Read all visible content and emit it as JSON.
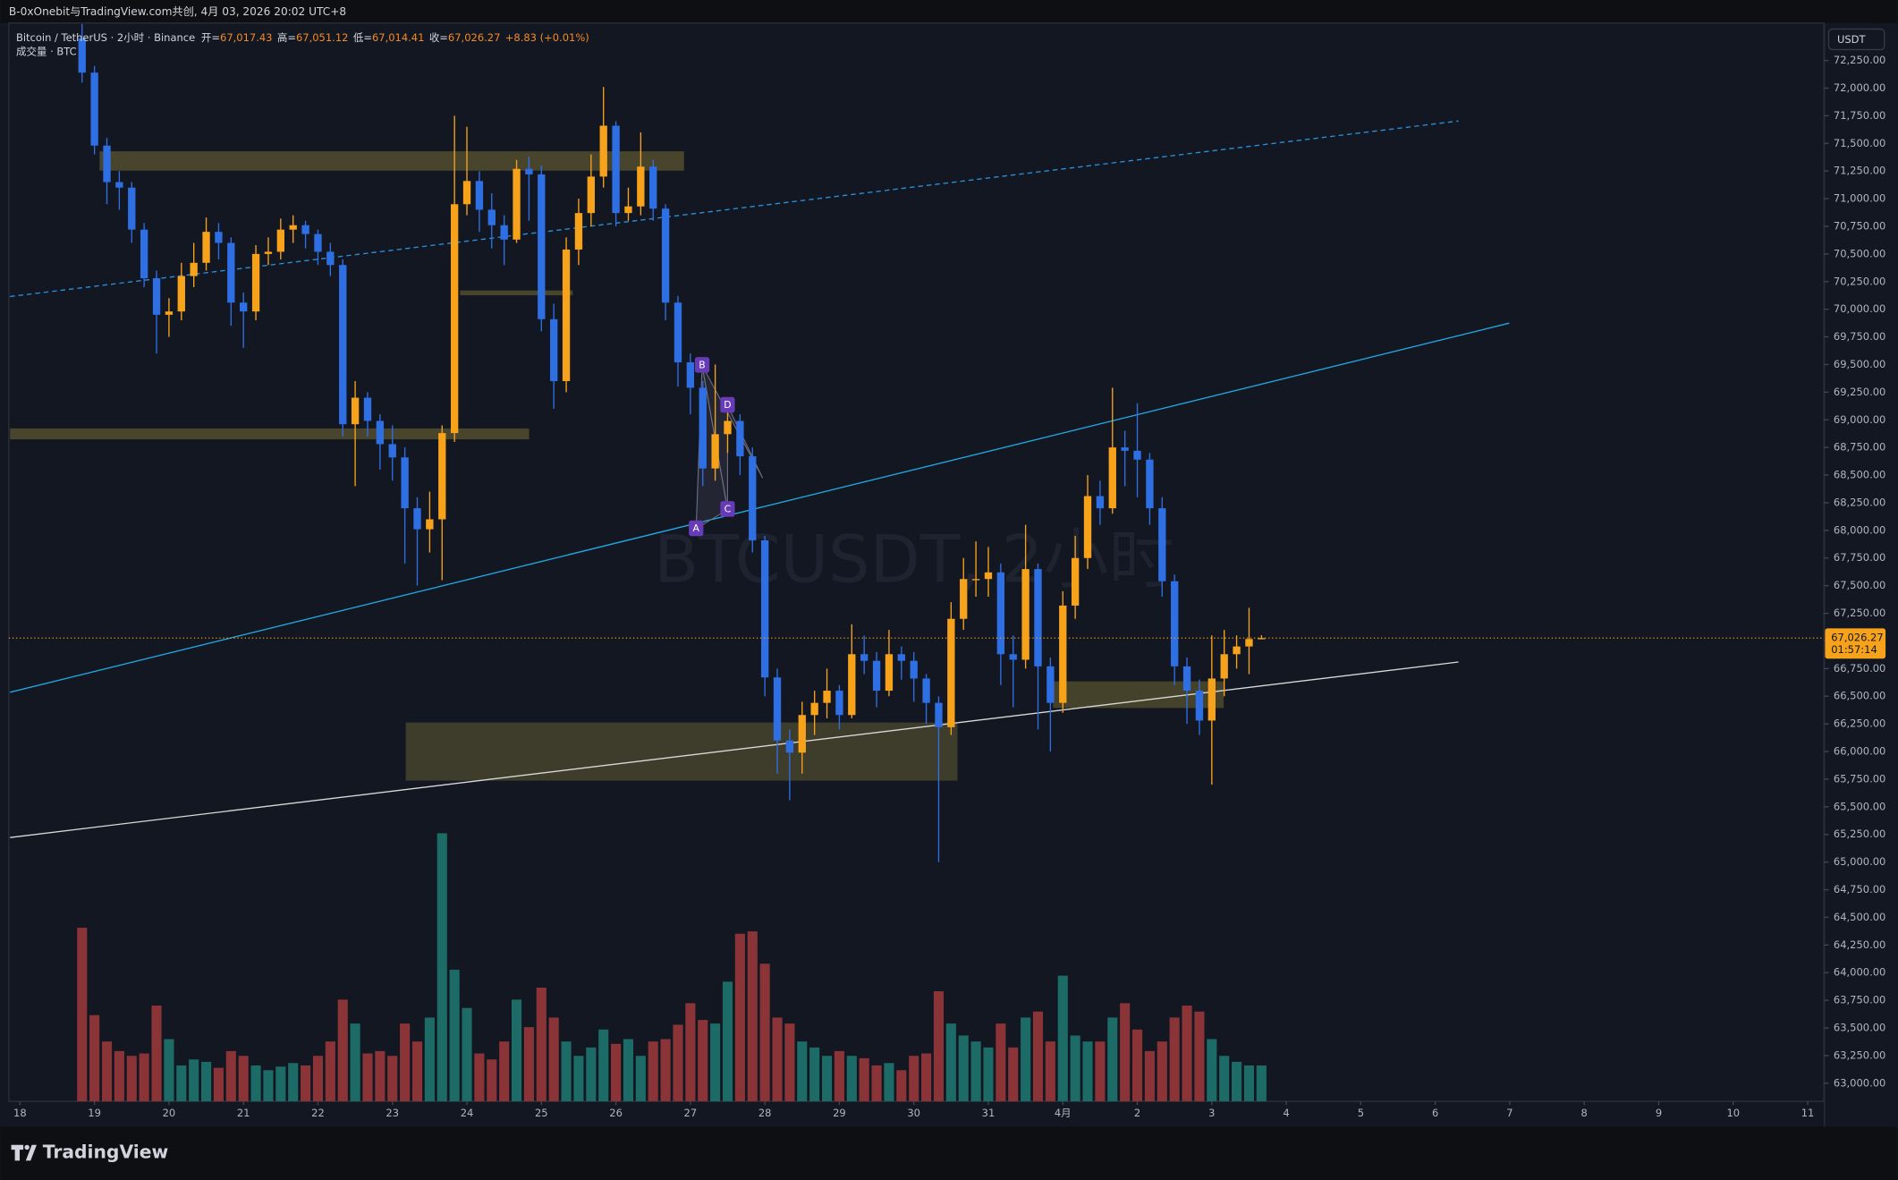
{
  "ui": {
    "top_title": "B-0xOnebit与TradingView.com共创, 4月 03, 2026 20:02 UTC+8",
    "symbol": "Bitcoin / TetherUS · 2小时 · Binance",
    "o_key": "开=",
    "o_val": "67,017.43",
    "h_key": "高=",
    "h_val": "67,051.12",
    "l_key": "低=",
    "l_val": "67,014.41",
    "c_key": "收=",
    "c_val": "67,026.27",
    "change": "+8.83 (+0.01%)",
    "volume_legend": "成交量 · BTC",
    "watermark": "BTCUSDT, 2小时",
    "currency": "USDT",
    "price_label": "67,026.27",
    "countdown": "01:57:14",
    "pattern_labels": [
      "B",
      "D",
      "A",
      "C"
    ],
    "brand": "TradingView"
  },
  "chart_data": {
    "type": "candlestick",
    "up_color": "#f7a21b",
    "down_color": "#2f6fe4",
    "volume_up_color": "#1d6b66",
    "volume_down_color": "#8a3438",
    "x": [
      0,
      1,
      2,
      3,
      4,
      5,
      6,
      7,
      8,
      9,
      10,
      11,
      12,
      13,
      14,
      15,
      16,
      17,
      18,
      19,
      20,
      21,
      22,
      23,
      24,
      25,
      26,
      27,
      28,
      29,
      30,
      31,
      32,
      33,
      34,
      35,
      36,
      37,
      38,
      39,
      40,
      41,
      42,
      43,
      44,
      45,
      46,
      47,
      48,
      49,
      50,
      51,
      52,
      53,
      54,
      55,
      56,
      57,
      58,
      59,
      60,
      61,
      62,
      63,
      64,
      65,
      66,
      67,
      68,
      69,
      70,
      71,
      72,
      73,
      74,
      75,
      76,
      77,
      78,
      79,
      80,
      81,
      82,
      83,
      84,
      85,
      86,
      87,
      88,
      89,
      90,
      91,
      92,
      93,
      94,
      95
    ],
    "open": [
      72450,
      72140,
      71480,
      71150,
      71100,
      70720,
      70280,
      69950,
      69980,
      70300,
      70420,
      70700,
      70600,
      70060,
      69980,
      70500,
      70520,
      70720,
      70760,
      70680,
      70520,
      70400,
      68960,
      69200,
      68990,
      68780,
      68660,
      68200,
      68010,
      68100,
      68880,
      70950,
      71160,
      70900,
      70760,
      70630,
      71270,
      71220,
      69910,
      69350,
      70540,
      70870,
      71200,
      71660,
      70870,
      70930,
      71290,
      70910,
      70060,
      69520,
      69290,
      68560,
      68870,
      68990,
      68670,
      67910,
      66670,
      66100,
      65990,
      66330,
      66440,
      66550,
      66330,
      66880,
      66820,
      66550,
      66880,
      66820,
      66660,
      66440,
      66220,
      67200,
      67560,
      67560,
      67620,
      66880,
      66830,
      67650,
      66770,
      66440,
      67320,
      67750,
      68310,
      68200,
      68750,
      68720,
      68640,
      68200,
      67540,
      66770,
      66550,
      66280,
      66660,
      66880,
      66950,
      67017.43
    ],
    "high": [
      72580,
      72200,
      71550,
      71250,
      71150,
      70780,
      70350,
      70100,
      70420,
      70600,
      70830,
      70780,
      70650,
      70150,
      70580,
      70650,
      70820,
      70850,
      70800,
      70720,
      70600,
      70450,
      69350,
      69250,
      69050,
      68950,
      68750,
      68300,
      68350,
      68950,
      71750,
      71650,
      71250,
      71050,
      70850,
      71350,
      71380,
      71300,
      70050,
      70650,
      71000,
      71400,
      72010,
      71700,
      71100,
      71600,
      71350,
      70950,
      70120,
      69600,
      69350,
      69500,
      69100,
      69050,
      68750,
      67950,
      66750,
      66200,
      66450,
      66550,
      66750,
      66600,
      67150,
      67050,
      66900,
      67100,
      66950,
      66900,
      66700,
      66500,
      67350,
      67750,
      67900,
      67850,
      67700,
      67050,
      68050,
      67700,
      66850,
      67450,
      67950,
      68500,
      68450,
      69290,
      68900,
      69150,
      68700,
      68300,
      67600,
      66850,
      66650,
      67050,
      67100,
      67050,
      67300,
      67051.12
    ],
    "low": [
      72050,
      71400,
      70950,
      70900,
      70600,
      70200,
      69600,
      69750,
      69900,
      70200,
      70350,
      70450,
      69850,
      69650,
      69900,
      70400,
      70450,
      70600,
      70550,
      70400,
      70300,
      68850,
      68400,
      68850,
      68550,
      68450,
      67700,
      67500,
      67800,
      67550,
      68800,
      70850,
      70700,
      70550,
      70400,
      70600,
      70800,
      69800,
      69100,
      69250,
      70400,
      70750,
      71100,
      70750,
      70800,
      70850,
      70800,
      69900,
      69300,
      69050,
      68400,
      68450,
      68700,
      68500,
      67800,
      66500,
      65800,
      65560,
      65800,
      66150,
      66300,
      66200,
      66300,
      66700,
      66400,
      66500,
      66650,
      66450,
      66250,
      65000,
      66150,
      67100,
      67400,
      67400,
      66600,
      66400,
      66750,
      66200,
      66000,
      66350,
      67200,
      67650,
      68050,
      68150,
      68400,
      68300,
      68050,
      67400,
      66600,
      66250,
      66150,
      65700,
      66500,
      66750,
      66700,
      67014.41
    ],
    "close": [
      72140,
      71480,
      71150,
      71100,
      70720,
      70280,
      69950,
      69980,
      70300,
      70420,
      70700,
      70600,
      70060,
      69980,
      70500,
      70520,
      70720,
      70760,
      70680,
      70520,
      70400,
      68960,
      69200,
      68990,
      68780,
      68660,
      68200,
      68010,
      68100,
      68880,
      70950,
      71160,
      70900,
      70760,
      70630,
      71270,
      71220,
      69910,
      69350,
      70540,
      70870,
      71200,
      71660,
      70870,
      70930,
      71290,
      70910,
      70060,
      69520,
      69290,
      68560,
      68870,
      68990,
      68670,
      67910,
      66670,
      66100,
      65990,
      66330,
      66440,
      66550,
      66330,
      66880,
      66820,
      66550,
      66880,
      66820,
      66660,
      66440,
      66220,
      67200,
      67560,
      67560,
      67620,
      66880,
      66830,
      67650,
      66770,
      66440,
      67320,
      67750,
      68310,
      68200,
      68750,
      68720,
      68640,
      68200,
      67540,
      66770,
      66550,
      66280,
      66660,
      66880,
      66950,
      67017.43,
      67026.27
    ],
    "volume": [
      1450,
      720,
      500,
      420,
      380,
      400,
      800,
      520,
      300,
      350,
      330,
      280,
      420,
      380,
      300,
      260,
      290,
      320,
      300,
      380,
      500,
      850,
      650,
      400,
      420,
      380,
      650,
      500,
      700,
      2240,
      1100,
      780,
      400,
      350,
      500,
      850,
      620,
      950,
      700,
      500,
      380,
      450,
      600,
      480,
      520,
      380,
      500,
      520,
      640,
      820,
      680,
      650,
      1000,
      1400,
      1420,
      1150,
      700,
      650,
      500,
      450,
      380,
      420,
      380,
      360,
      300,
      320,
      260,
      380,
      400,
      920,
      650,
      550,
      500,
      450,
      650,
      450,
      700,
      750,
      500,
      1050,
      550,
      500,
      500,
      700,
      820,
      600,
      420,
      500,
      700,
      800,
      750,
      520,
      380,
      330,
      300,
      300
    ],
    "volume_ylim": [
      0,
      9000
    ],
    "xlim": [
      -5.9,
      140.3
    ],
    "xticks": [
      {
        "value": -5,
        "label": "18"
      },
      {
        "value": 1,
        "label": "19"
      },
      {
        "value": 7,
        "label": "20"
      },
      {
        "value": 13,
        "label": "21"
      },
      {
        "value": 19,
        "label": "22"
      },
      {
        "value": 25,
        "label": "23"
      },
      {
        "value": 31,
        "label": "24"
      },
      {
        "value": 37,
        "label": "25"
      },
      {
        "value": 43,
        "label": "26"
      },
      {
        "value": 49,
        "label": "27"
      },
      {
        "value": 55,
        "label": "28"
      },
      {
        "value": 61,
        "label": "29"
      },
      {
        "value": 67,
        "label": "30"
      },
      {
        "value": 73,
        "label": "31"
      },
      {
        "value": 79,
        "label": "4月"
      },
      {
        "value": 85,
        "label": "2"
      },
      {
        "value": 91,
        "label": "3"
      },
      {
        "value": 97,
        "label": "4"
      },
      {
        "value": 103,
        "label": "5"
      },
      {
        "value": 109,
        "label": "6"
      },
      {
        "value": 115,
        "label": "7"
      },
      {
        "value": 121,
        "label": "8"
      },
      {
        "value": 127,
        "label": "9"
      },
      {
        "value": 133,
        "label": "10"
      },
      {
        "value": 139,
        "label": "11"
      }
    ],
    "ylim": [
      62836,
      72578
    ],
    "yticks": [
      {
        "value": 72250,
        "label": "72,250.00"
      },
      {
        "value": 72000,
        "label": "72,000.00"
      },
      {
        "value": 71750,
        "label": "71,750.00"
      },
      {
        "value": 71500,
        "label": "71,500.00"
      },
      {
        "value": 71250,
        "label": "71,250.00"
      },
      {
        "value": 71000,
        "label": "71,000.00"
      },
      {
        "value": 70750,
        "label": "70,750.00"
      },
      {
        "value": 70500,
        "label": "70,500.00"
      },
      {
        "value": 70250,
        "label": "70,250.00"
      },
      {
        "value": 70000,
        "label": "70,000.00"
      },
      {
        "value": 69750,
        "label": "69,750.00"
      },
      {
        "value": 69500,
        "label": "69,500.00"
      },
      {
        "value": 69250,
        "label": "69,250.00"
      },
      {
        "value": 69000,
        "label": "69,000.00"
      },
      {
        "value": 68750,
        "label": "68,750.00"
      },
      {
        "value": 68500,
        "label": "68,500.00"
      },
      {
        "value": 68250,
        "label": "68,250.00"
      },
      {
        "value": 68000,
        "label": "68,000.00"
      },
      {
        "value": 67750,
        "label": "67,750.00"
      },
      {
        "value": 67500,
        "label": "67,500.00"
      },
      {
        "value": 67250,
        "label": "67,250.00"
      },
      {
        "value": 67000,
        "label": "67,000.00"
      },
      {
        "value": 66750,
        "label": "66,750.00"
      },
      {
        "value": 66500,
        "label": "66,500.00"
      },
      {
        "value": 66250,
        "label": "66,250.00"
      },
      {
        "value": 66000,
        "label": "66,000.00"
      },
      {
        "value": 65750,
        "label": "65,750.00"
      },
      {
        "value": 65500,
        "label": "65,500.00"
      },
      {
        "value": 65250,
        "label": "65,250.00"
      },
      {
        "value": 65000,
        "label": "65,000.00"
      },
      {
        "value": 64750,
        "label": "64,750.00"
      },
      {
        "value": 64500,
        "label": "64,500.00"
      },
      {
        "value": 64250,
        "label": "64,250.00"
      },
      {
        "value": 64000,
        "label": "64,000.00"
      },
      {
        "value": 63750,
        "label": "63,750.00"
      },
      {
        "value": 63500,
        "label": "63,500.00"
      },
      {
        "value": 63250,
        "label": "63,250.00"
      },
      {
        "value": 63000,
        "label": "63,000.00"
      }
    ],
    "grid": false
  }
}
